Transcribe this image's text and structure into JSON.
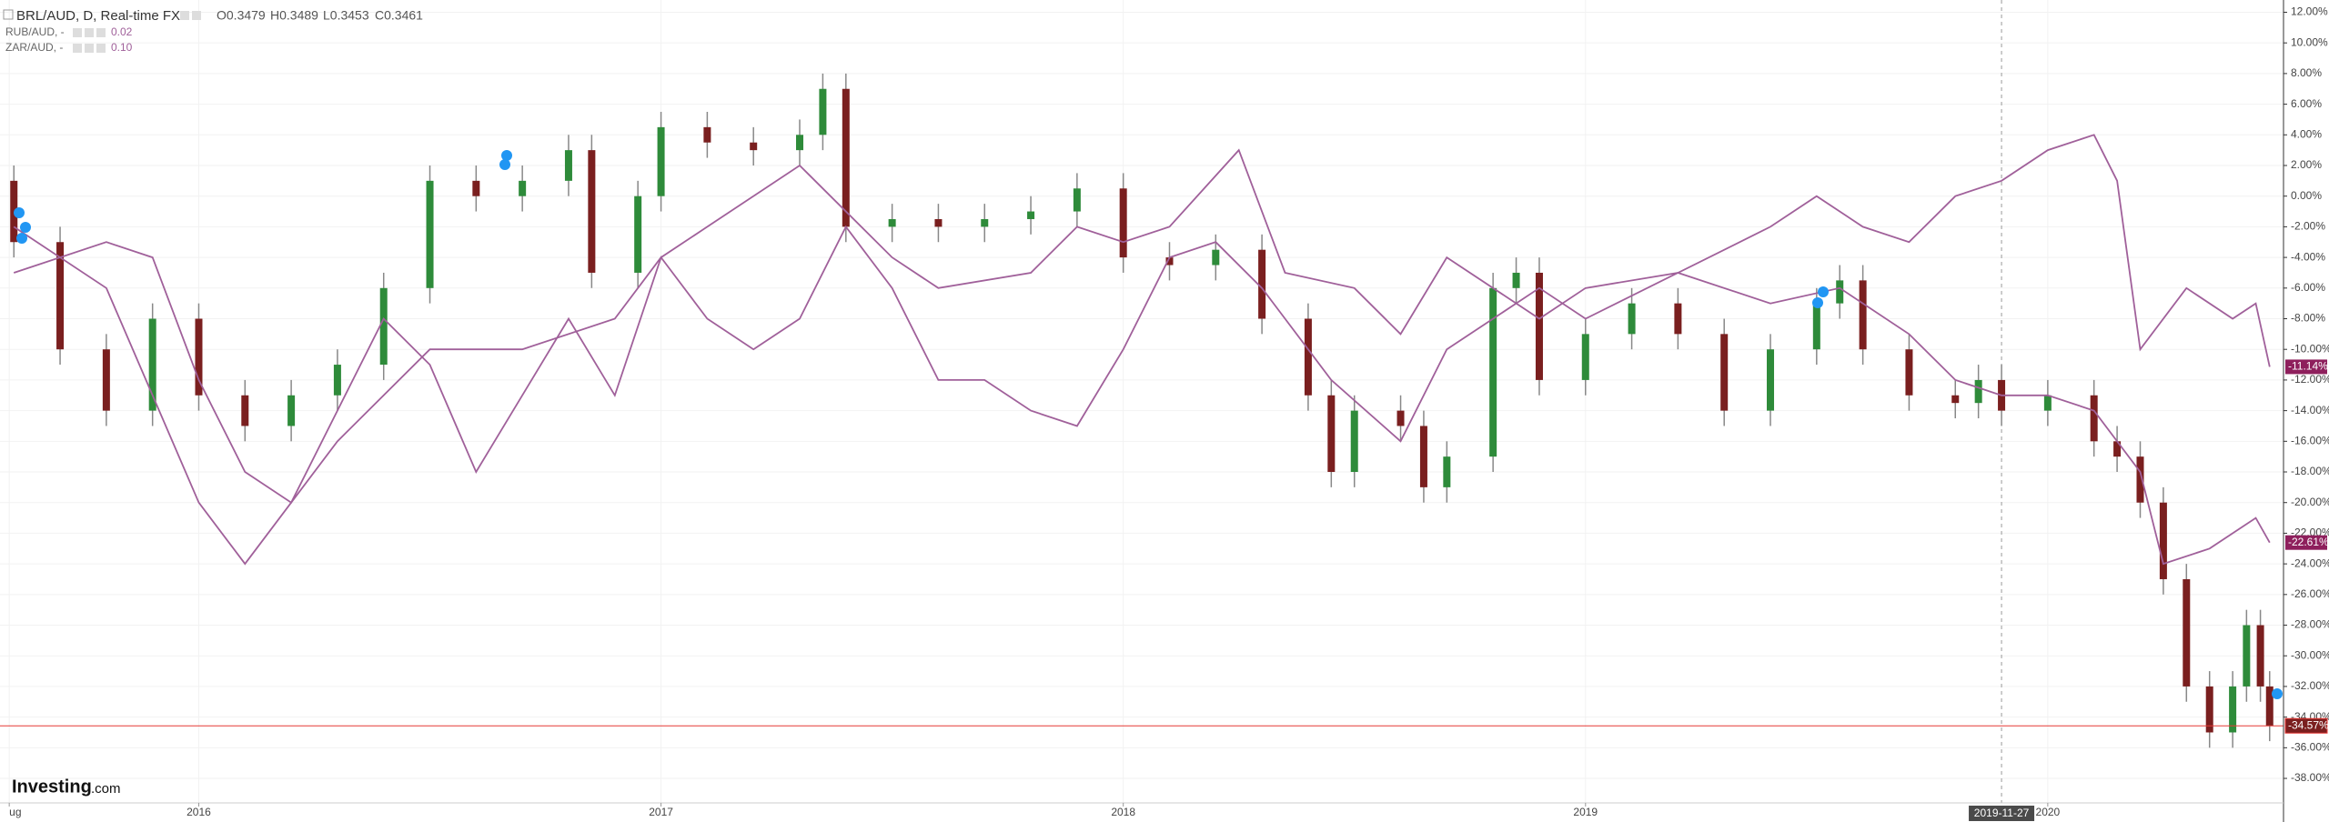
{
  "chart_data": {
    "type": "candlestick",
    "header": {
      "symbol": "BRL/AUD, D, Real-time FX",
      "ohlc": [
        "O0.3479",
        "H0.3489",
        "L0.3453",
        "C0.3461"
      ]
    },
    "brand": {
      "name": "Investing",
      "suffix": ".com"
    },
    "xlim": [
      2015.57,
      2020.51
    ],
    "xticks": [
      {
        "value": 2015.59,
        "label": "ug"
      },
      2016,
      2017,
      2018,
      2019,
      2020
    ],
    "crosshair": {
      "value": 2019.9,
      "label": "2019-11-27"
    },
    "ylim": [
      -39.6,
      12.8
    ],
    "yticks": [
      {
        "value": 12,
        "label": "12.00%"
      },
      {
        "value": 10,
        "label": "10.00%"
      },
      {
        "value": 8,
        "label": "8.00%"
      },
      {
        "value": 6,
        "label": "6.00%"
      },
      {
        "value": 4,
        "label": "4.00%"
      },
      {
        "value": 2,
        "label": "2.00%"
      },
      {
        "value": 0,
        "label": "0.00%"
      },
      {
        "value": -2,
        "label": "-2.00%"
      },
      {
        "value": -4,
        "label": "-4.00%"
      },
      {
        "value": -6,
        "label": "-6.00%"
      },
      {
        "value": -8,
        "label": "-8.00%"
      },
      {
        "value": -10,
        "label": "-10.00%"
      },
      {
        "value": -12,
        "label": "-12.00%"
      },
      {
        "value": -14,
        "label": "-14.00%"
      },
      {
        "value": -16,
        "label": "-16.00%"
      },
      {
        "value": -18,
        "label": "-18.00%"
      },
      {
        "value": -20,
        "label": "-20.00%"
      },
      {
        "value": -22,
        "label": "-22.00%"
      },
      {
        "value": -24,
        "label": "-24.00%"
      },
      {
        "value": -26,
        "label": "-26.00%"
      },
      {
        "value": -28,
        "label": "-28.00%"
      },
      {
        "value": -30,
        "label": "-30.00%"
      },
      {
        "value": -32,
        "label": "-32.00%"
      },
      {
        "value": -34,
        "label": "-34.00%"
      },
      {
        "value": -36,
        "label": "-36.00%"
      },
      {
        "value": -38,
        "label": "-38.00%"
      }
    ],
    "grid": true,
    "up_color": "#2e8b3a",
    "down_color": "#7a1f1f",
    "candles": {
      "last_label": "-34.57%",
      "x": [
        2015.6,
        2015.7,
        2015.8,
        2015.9,
        2016.0,
        2016.1,
        2016.2,
        2016.3,
        2016.4,
        2016.5,
        2016.6,
        2016.7,
        2016.8,
        2016.85,
        2016.95,
        2017.0,
        2017.1,
        2017.2,
        2017.3,
        2017.35,
        2017.4,
        2017.5,
        2017.6,
        2017.7,
        2017.8,
        2017.9,
        2018.0,
        2018.1,
        2018.2,
        2018.3,
        2018.4,
        2018.45,
        2018.5,
        2018.6,
        2018.65,
        2018.7,
        2018.8,
        2018.85,
        2018.9,
        2019.0,
        2019.1,
        2019.2,
        2019.3,
        2019.4,
        2019.5,
        2019.55,
        2019.6,
        2019.7,
        2019.8,
        2019.85,
        2019.9,
        2020.0,
        2020.1,
        2020.15,
        2020.2,
        2020.25,
        2020.3,
        2020.35,
        2020.4,
        2020.43,
        2020.46,
        2020.48
      ],
      "open": [
        1,
        -3,
        -10,
        -14,
        -8,
        -13,
        -15,
        -13,
        -11,
        -6,
        1,
        0,
        1,
        3,
        -5,
        0,
        4.5,
        3.5,
        3,
        4,
        7,
        -2,
        -1.5,
        -2,
        -1.5,
        -1,
        0.5,
        -4,
        -4.5,
        -3.5,
        -8,
        -13,
        -18,
        -14,
        -15,
        -19,
        -17,
        -6,
        -5,
        -12,
        -9,
        -7,
        -9,
        -14,
        -10,
        -7,
        -5.5,
        -10,
        -13,
        -13.5,
        -12,
        -14,
        -13,
        -16,
        -17,
        -20,
        -25,
        -32,
        -35,
        -32,
        -28,
        -32
      ],
      "high": [
        2,
        -2,
        -9,
        -7,
        -7,
        -12,
        -12,
        -10,
        -5,
        2,
        2,
        2,
        4,
        4,
        1,
        5.5,
        5.5,
        4.5,
        5,
        8,
        8,
        -0.5,
        -0.5,
        -0.5,
        0,
        1.5,
        1.5,
        -3,
        -2.5,
        -2.5,
        -7,
        -12,
        -13,
        -13,
        -14,
        -16,
        -5,
        -4,
        -4,
        -8,
        -6,
        -6,
        -8,
        -9,
        -6,
        -4.5,
        -4.5,
        -9,
        -12,
        -11,
        -11,
        -12,
        -12,
        -15,
        -16,
        -19,
        -24,
        -31,
        -31,
        -27,
        -27,
        -31
      ],
      "low": [
        -4,
        -11,
        -15,
        -15,
        -14,
        -16,
        -16,
        -14,
        -12,
        -7,
        -1,
        -1,
        0,
        -6,
        -6,
        -1,
        2.5,
        2,
        2,
        3,
        -3,
        -3,
        -3,
        -3,
        -2.5,
        -2,
        -5,
        -5.5,
        -5.5,
        -9,
        -14,
        -19,
        -19,
        -16,
        -20,
        -20,
        -18,
        -7,
        -13,
        -13,
        -10,
        -10,
        -15,
        -15,
        -11,
        -8,
        -11,
        -14,
        -14.5,
        -14.5,
        -15,
        -15,
        -17,
        -18,
        -21,
        -26,
        -33,
        -36,
        -36,
        -33,
        -33,
        -35.57
      ],
      "close": [
        -3,
        -10,
        -14,
        -8,
        -13,
        -15,
        -13,
        -11,
        -6,
        1,
        0,
        1,
        3,
        -5,
        0,
        4.5,
        3.5,
        3,
        4,
        7,
        -2,
        -1.5,
        -2,
        -1.5,
        -1,
        0.5,
        -4,
        -4.5,
        -3.5,
        -8,
        -13,
        -18,
        -14,
        -15,
        -19,
        -17,
        -6,
        -5,
        -12,
        -9,
        -7,
        -9,
        -14,
        -10,
        -7,
        -5.5,
        -10,
        -13,
        -13.5,
        -12,
        -14,
        -13,
        -16,
        -17,
        -20,
        -25,
        -32,
        -35,
        -32,
        -28,
        -32,
        -34.57
      ]
    },
    "series": [
      {
        "name": "RUB/AUD, -",
        "legend_value": "0.02",
        "color": "#a0609a",
        "last_label": "-11.14%",
        "x": [
          2015.6,
          2015.8,
          2016.0,
          2016.1,
          2016.3,
          2016.5,
          2016.7,
          2016.9,
          2017.0,
          2017.1,
          2017.3,
          2017.5,
          2017.6,
          2017.8,
          2017.9,
          2018.0,
          2018.1,
          2018.25,
          2018.35,
          2018.5,
          2018.6,
          2018.7,
          2018.9,
          2019.0,
          2019.2,
          2019.4,
          2019.5,
          2019.6,
          2019.7,
          2019.8,
          2019.9,
          2020.0,
          2020.1,
          2020.15,
          2020.2,
          2020.3,
          2020.4,
          2020.45,
          2020.48
        ],
        "values": [
          -2,
          -6,
          -20,
          -24,
          -16,
          -10,
          -10,
          -8,
          -4,
          -2,
          2,
          -4,
          -6,
          -5,
          -2,
          -3,
          -2,
          3,
          -5,
          -6,
          -9,
          -4,
          -8,
          -6,
          -5,
          -2,
          0,
          -2,
          -3,
          0,
          1,
          3,
          4,
          1,
          -10,
          -6,
          -8,
          -7,
          -11.14
        ]
      },
      {
        "name": "ZAR/AUD, -",
        "legend_value": "0.10",
        "color": "#a0609a",
        "last_label": "-22.61%",
        "x": [
          2015.6,
          2015.8,
          2015.9,
          2016.0,
          2016.1,
          2016.2,
          2016.4,
          2016.5,
          2016.6,
          2016.7,
          2016.8,
          2016.9,
          2017.0,
          2017.1,
          2017.2,
          2017.3,
          2017.4,
          2017.5,
          2017.6,
          2017.7,
          2017.8,
          2017.9,
          2018.0,
          2018.1,
          2018.2,
          2018.3,
          2018.45,
          2018.6,
          2018.7,
          2018.8,
          2018.9,
          2019.0,
          2019.2,
          2019.4,
          2019.55,
          2019.7,
          2019.8,
          2019.9,
          2020.0,
          2020.1,
          2020.2,
          2020.25,
          2020.35,
          2020.45,
          2020.48
        ],
        "values": [
          -5,
          -3,
          -4,
          -12,
          -18,
          -20,
          -8,
          -11,
          -18,
          -13,
          -8,
          -13,
          -4,
          -8,
          -10,
          -8,
          -2,
          -6,
          -12,
          -12,
          -14,
          -15,
          -10,
          -4,
          -3,
          -6,
          -12,
          -16,
          -10,
          -8,
          -6,
          -8,
          -5,
          -7,
          -6,
          -9,
          -12,
          -13,
          -13,
          -14,
          -18,
          -24,
          -23,
          -21,
          -22.61
        ]
      }
    ]
  }
}
